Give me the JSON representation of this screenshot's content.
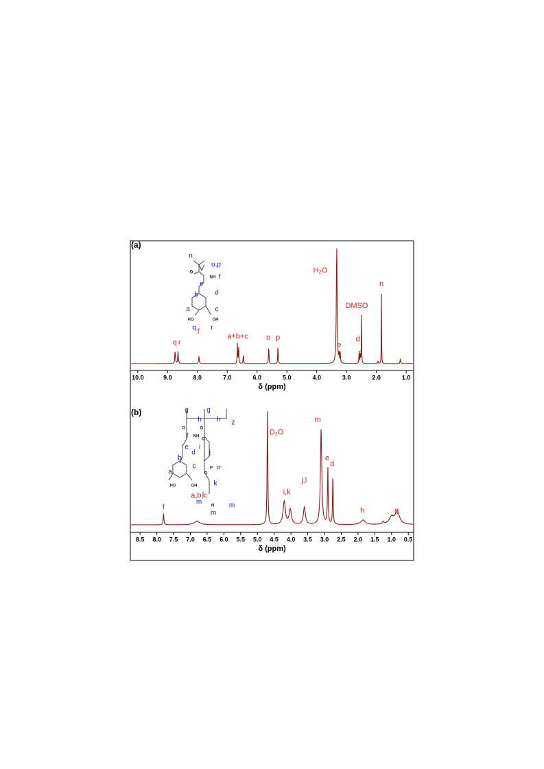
{
  "chart_data": [
    {
      "type": "spectrum",
      "panel_label": "(a)",
      "x_label": "δ (ppm)",
      "color": "#8b1a1a",
      "label_color": "#e0201a",
      "xlim": [
        10.25,
        0.75
      ],
      "ylim": [
        0,
        100
      ],
      "xticks": [
        {
          "value": 10,
          "label": "10.0"
        },
        {
          "value": 9,
          "label": "9.0"
        },
        {
          "value": 8,
          "label": "8.0"
        },
        {
          "value": 7,
          "label": "7.0"
        },
        {
          "value": 6,
          "label": "6.0"
        },
        {
          "value": 5,
          "label": "5.0"
        },
        {
          "value": 4,
          "label": "4.0"
        },
        {
          "value": 3,
          "label": "3.0"
        },
        {
          "value": 2,
          "label": "2.0"
        },
        {
          "value": 1,
          "label": "1.0"
        }
      ],
      "peaks": [
        {
          "x": 8.75,
          "height": 11,
          "width": 0.012
        },
        {
          "x": 8.65,
          "height": 10,
          "width": 0.012
        },
        {
          "x": 7.95,
          "height": 6,
          "width": 0.012
        },
        {
          "x": 6.66,
          "height": 17,
          "width": 0.008
        },
        {
          "x": 6.62,
          "height": 17,
          "width": 0.008
        },
        {
          "x": 6.46,
          "height": 9,
          "width": 0.008
        },
        {
          "x": 5.61,
          "height": 17,
          "width": 0.008
        },
        {
          "x": 5.3,
          "height": 17,
          "width": 0.008
        },
        {
          "x": 3.33,
          "height": 100,
          "width": 0.015
        },
        {
          "x": 3.25,
          "height": 9,
          "width": 0.008
        },
        {
          "x": 3.21,
          "height": 8,
          "width": 0.008
        },
        {
          "x": 2.58,
          "height": 10,
          "width": 0.008
        },
        {
          "x": 2.54,
          "height": 9,
          "width": 0.008
        },
        {
          "x": 2.5,
          "height": 43,
          "width": 0.006
        },
        {
          "x": 1.95,
          "height": 2,
          "width": 0.01
        },
        {
          "x": 1.83,
          "height": 60,
          "width": 0.005
        },
        {
          "x": 1.2,
          "height": 4,
          "width": 0.01
        }
      ],
      "annotations": [
        {
          "text": "q",
          "x": 8.76,
          "y": 17
        },
        {
          "text": "r",
          "x": 8.6,
          "y": 17
        },
        {
          "text": "f",
          "x": 7.97,
          "y": 26
        },
        {
          "text": "a+b+c",
          "x": 6.65,
          "y": 22
        },
        {
          "text": "o",
          "x": 5.62,
          "y": 21
        },
        {
          "text": "p",
          "x": 5.3,
          "y": 21
        },
        {
          "text": "H₂O",
          "x": 3.88,
          "y": 76
        },
        {
          "text": "e",
          "x": 3.25,
          "y": 15
        },
        {
          "text": "DMSO",
          "x": 2.66,
          "y": 47
        },
        {
          "text": "d",
          "x": 2.62,
          "y": 20
        },
        {
          "text": "n",
          "x": 1.83,
          "y": 65
        }
      ],
      "structure": [
        "n",
        "o,p",
        "O",
        "NH",
        "f",
        "e",
        "d",
        "b",
        "a",
        "c",
        "HO",
        "OH",
        "q",
        "r"
      ]
    },
    {
      "type": "spectrum",
      "panel_label": "(b)",
      "x_label": "δ (ppm)",
      "color": "#8b1a1a",
      "label_color": "#e0201a",
      "xlim": [
        8.79,
        0.34
      ],
      "ylim": [
        0,
        100
      ],
      "xticks": [
        8.5,
        {
          "value": 8,
          "label": "8.0"
        },
        7.5,
        {
          "value": 7,
          "label": "7.0"
        },
        6.5,
        {
          "value": 6,
          "label": "6.0"
        },
        5.5,
        {
          "value": 5,
          "label": "5.0"
        },
        4.5,
        {
          "value": 4,
          "label": "4.0"
        },
        3.5,
        {
          "value": 3,
          "label": "3.0"
        },
        2.5,
        {
          "value": 2,
          "label": "2.0"
        },
        1.5,
        {
          "value": 1,
          "label": "1.0"
        },
        0.5
      ],
      "peaks": [
        {
          "x": 7.8,
          "height": 10,
          "width": 0.012
        },
        {
          "x": 6.8,
          "height": 3,
          "width": 0.1
        },
        {
          "x": 4.7,
          "height": 100,
          "width": 0.012
        },
        {
          "x": 4.2,
          "height": 20,
          "width": 0.04
        },
        {
          "x": 4.02,
          "height": 13,
          "width": 0.04
        },
        {
          "x": 3.6,
          "height": 15,
          "width": 0.035
        },
        {
          "x": 3.1,
          "height": 82,
          "width": 0.025
        },
        {
          "x": 2.9,
          "height": 50,
          "width": 0.012
        },
        {
          "x": 2.75,
          "height": 46,
          "width": 0.01
        },
        {
          "x": 1.85,
          "height": 4,
          "width": 0.08
        },
        {
          "x": 1.25,
          "height": 2,
          "width": 0.03
        },
        {
          "x": 1.0,
          "height": 6,
          "width": 0.08
        },
        {
          "x": 0.83,
          "height": 11,
          "width": 0.08
        }
      ],
      "annotations": [
        {
          "text": "f",
          "x": 7.8,
          "y": 15
        },
        {
          "text": "a,b,c",
          "x": 6.74,
          "y": 25
        },
        {
          "text": "D₂O",
          "x": 4.43,
          "y": 79
        },
        {
          "text": "i,k",
          "x": 4.12,
          "y": 28
        },
        {
          "text": "j,l",
          "x": 3.61,
          "y": 38
        },
        {
          "text": "m",
          "x": 3.2,
          "y": 90
        },
        {
          "text": "e",
          "x": 2.92,
          "y": 57
        },
        {
          "text": "d",
          "x": 2.77,
          "y": 52
        },
        {
          "text": "h",
          "x": 1.87,
          "y": 12
        },
        {
          "text": "g",
          "x": 0.85,
          "y": 12
        }
      ],
      "structure": [
        "g",
        "h",
        "g",
        "h",
        "z",
        "O",
        "O",
        "NH",
        "f",
        "O",
        "e",
        "i",
        "d",
        "j",
        "b",
        "c",
        "a",
        "P",
        "O",
        "O⁻",
        "k",
        "HO",
        "OH",
        "l",
        "m",
        "N",
        "m",
        "m"
      ]
    }
  ]
}
